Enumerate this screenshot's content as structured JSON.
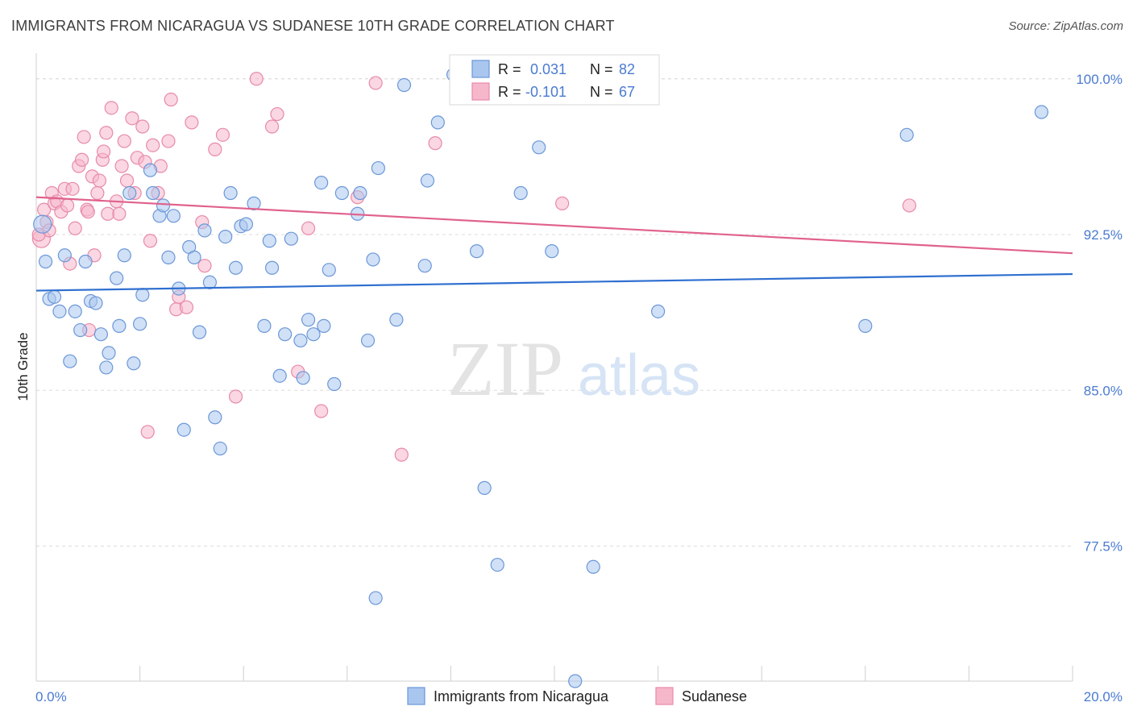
{
  "title": "IMMIGRANTS FROM NICARAGUA VS SUDANESE 10TH GRADE CORRELATION CHART",
  "source": "Source: ZipAtlas.com",
  "watermark": {
    "zip": "ZIP",
    "atlas": "atlas"
  },
  "colors": {
    "blue_fill": "#a9c6ef",
    "blue_stroke": "#6b97d8",
    "blue_line": "#2f6fd0",
    "pink_fill": "#f6b7cb",
    "pink_stroke": "#e88aa8",
    "pink_line": "#e0628d",
    "tick_text": "#4a7bd1",
    "grid": "#dcdcdc"
  },
  "legend": {
    "rows": [
      {
        "r_label": "R =",
        "r_value": "0.031",
        "n_label": "N =",
        "n_value": "82",
        "series": "blue"
      },
      {
        "r_label": "R =",
        "r_value": "-0.101",
        "n_label": "N =",
        "n_value": "67",
        "series": "pink"
      }
    ]
  },
  "bottom_legend": [
    {
      "label": "Immigrants from Nicaragua",
      "series": "blue"
    },
    {
      "label": "Sudanese",
      "series": "pink"
    }
  ],
  "chart_data": {
    "type": "scatter",
    "title": "IMMIGRANTS FROM NICARAGUA VS SUDANESE 10TH GRADE CORRELATION CHART",
    "xlabel": "",
    "ylabel": "10th Grade",
    "xlim": [
      0,
      20
    ],
    "ylim": [
      71.0,
      101.0
    ],
    "x_tick_labels": [
      "0.0%",
      "20.0%"
    ],
    "y_ticks": [
      77.5,
      85.0,
      92.5,
      100.0
    ],
    "y_tick_labels": [
      "77.5%",
      "85.0%",
      "92.5%",
      "100.0%"
    ],
    "grid": true,
    "legend_position": "top-center",
    "series": [
      {
        "name": "Immigrants from Nicaragua",
        "color": "#a9c6ef",
        "trend": {
          "x": [
            0,
            20
          ],
          "y": [
            89.8,
            90.6
          ]
        },
        "points": [
          [
            0.12,
            93.0
          ],
          [
            0.18,
            91.2
          ],
          [
            0.25,
            89.4
          ],
          [
            0.35,
            89.5
          ],
          [
            0.45,
            88.8
          ],
          [
            0.55,
            91.5
          ],
          [
            0.65,
            86.4
          ],
          [
            0.75,
            88.8
          ],
          [
            0.85,
            87.9
          ],
          [
            0.95,
            91.2
          ],
          [
            1.05,
            89.3
          ],
          [
            1.15,
            89.2
          ],
          [
            1.25,
            87.7
          ],
          [
            1.35,
            86.1
          ],
          [
            1.4,
            86.8
          ],
          [
            1.55,
            90.4
          ],
          [
            1.6,
            88.1
          ],
          [
            1.7,
            91.5
          ],
          [
            1.8,
            94.5
          ],
          [
            1.88,
            86.3
          ],
          [
            2.0,
            88.2
          ],
          [
            2.05,
            89.6
          ],
          [
            2.2,
            95.6
          ],
          [
            2.25,
            94.5
          ],
          [
            2.38,
            93.4
          ],
          [
            2.45,
            93.9
          ],
          [
            2.55,
            91.4
          ],
          [
            2.65,
            93.4
          ],
          [
            2.75,
            89.9
          ],
          [
            2.85,
            83.1
          ],
          [
            2.95,
            91.9
          ],
          [
            3.05,
            91.4
          ],
          [
            3.15,
            87.8
          ],
          [
            3.25,
            92.7
          ],
          [
            3.35,
            90.2
          ],
          [
            3.45,
            83.7
          ],
          [
            3.55,
            82.2
          ],
          [
            3.65,
            92.4
          ],
          [
            3.75,
            94.5
          ],
          [
            3.85,
            90.9
          ],
          [
            3.95,
            92.9
          ],
          [
            4.05,
            93.0
          ],
          [
            4.2,
            94.0
          ],
          [
            4.4,
            88.1
          ],
          [
            4.5,
            92.2
          ],
          [
            4.55,
            90.9
          ],
          [
            4.7,
            85.7
          ],
          [
            4.8,
            87.7
          ],
          [
            4.92,
            92.3
          ],
          [
            5.1,
            87.4
          ],
          [
            5.15,
            85.6
          ],
          [
            5.25,
            88.4
          ],
          [
            5.35,
            87.7
          ],
          [
            5.5,
            95.0
          ],
          [
            5.55,
            88.1
          ],
          [
            5.65,
            90.8
          ],
          [
            5.75,
            85.3
          ],
          [
            5.9,
            94.5
          ],
          [
            6.2,
            93.5
          ],
          [
            6.25,
            94.5
          ],
          [
            6.4,
            87.4
          ],
          [
            6.5,
            91.3
          ],
          [
            6.6,
            95.7
          ],
          [
            6.95,
            88.4
          ],
          [
            7.1,
            99.7
          ],
          [
            7.5,
            91.0
          ],
          [
            7.55,
            95.1
          ],
          [
            7.75,
            97.9
          ],
          [
            8.05,
            100.2
          ],
          [
            8.5,
            91.7
          ],
          [
            8.65,
            80.3
          ],
          [
            8.9,
            76.6
          ],
          [
            6.55,
            75.0
          ],
          [
            9.35,
            94.5
          ],
          [
            9.7,
            96.7
          ],
          [
            9.95,
            91.7
          ],
          [
            10.4,
            71.0
          ],
          [
            10.75,
            76.5
          ],
          [
            12.0,
            88.8
          ],
          [
            16.0,
            88.1
          ],
          [
            16.8,
            97.3
          ],
          [
            19.4,
            98.4
          ]
        ]
      },
      {
        "name": "Sudanese",
        "color": "#f6b7cb",
        "trend": {
          "x": [
            0,
            20
          ],
          "y": [
            94.3,
            91.6
          ]
        },
        "points": [
          [
            0.1,
            92.3
          ],
          [
            0.15,
            93.7
          ],
          [
            0.2,
            93.1
          ],
          [
            0.3,
            94.5
          ],
          [
            0.35,
            94.0
          ],
          [
            0.4,
            94.1
          ],
          [
            0.48,
            93.6
          ],
          [
            0.55,
            94.7
          ],
          [
            0.6,
            93.9
          ],
          [
            0.65,
            91.1
          ],
          [
            0.7,
            94.7
          ],
          [
            0.75,
            92.8
          ],
          [
            0.82,
            95.8
          ],
          [
            0.88,
            96.1
          ],
          [
            0.92,
            97.2
          ],
          [
            0.98,
            93.7
          ],
          [
            1.02,
            87.9
          ],
          [
            1.08,
            95.3
          ],
          [
            1.12,
            91.5
          ],
          [
            1.18,
            94.5
          ],
          [
            1.22,
            95.1
          ],
          [
            1.28,
            96.1
          ],
          [
            1.3,
            96.5
          ],
          [
            1.35,
            97.4
          ],
          [
            1.38,
            93.5
          ],
          [
            1.45,
            98.6
          ],
          [
            1.55,
            94.1
          ],
          [
            1.6,
            93.5
          ],
          [
            1.65,
            95.8
          ],
          [
            1.7,
            97.0
          ],
          [
            1.75,
            95.1
          ],
          [
            1.85,
            98.1
          ],
          [
            1.9,
            94.5
          ],
          [
            1.95,
            96.2
          ],
          [
            2.05,
            97.7
          ],
          [
            2.1,
            96.0
          ],
          [
            2.15,
            83.0
          ],
          [
            2.2,
            92.2
          ],
          [
            2.25,
            96.8
          ],
          [
            2.35,
            94.5
          ],
          [
            2.4,
            95.8
          ],
          [
            2.55,
            97.0
          ],
          [
            2.6,
            99.0
          ],
          [
            2.7,
            88.9
          ],
          [
            2.75,
            89.5
          ],
          [
            2.9,
            89.0
          ],
          [
            3.0,
            97.9
          ],
          [
            3.2,
            93.1
          ],
          [
            3.25,
            91.0
          ],
          [
            3.45,
            96.6
          ],
          [
            3.6,
            97.3
          ],
          [
            3.85,
            84.7
          ],
          [
            4.25,
            100.0
          ],
          [
            4.55,
            97.7
          ],
          [
            4.65,
            98.3
          ],
          [
            5.05,
            85.9
          ],
          [
            5.25,
            92.8
          ],
          [
            5.5,
            84.0
          ],
          [
            6.2,
            94.3
          ],
          [
            6.55,
            99.8
          ],
          [
            7.05,
            81.9
          ],
          [
            7.7,
            96.9
          ],
          [
            10.15,
            94.0
          ],
          [
            16.85,
            93.9
          ],
          [
            0.05,
            92.5
          ],
          [
            0.25,
            92.7
          ],
          [
            1.0,
            93.6
          ]
        ]
      }
    ]
  }
}
